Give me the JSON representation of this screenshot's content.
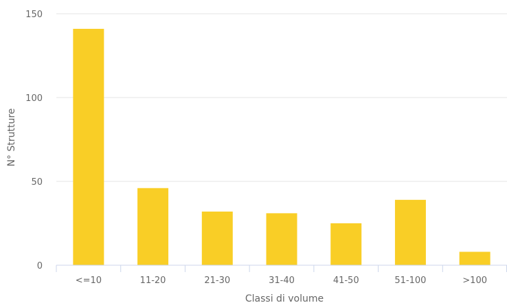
{
  "chart_data": {
    "type": "bar",
    "title": "",
    "xlabel": "Classi di volume",
    "ylabel": "N° Strutture",
    "categories": [
      "<=10",
      "11-20",
      "21-30",
      "31-40",
      "41-50",
      "51-100",
      ">100"
    ],
    "values": [
      141,
      46,
      32,
      31,
      25,
      39,
      8
    ],
    "ylim": [
      0,
      150
    ],
    "yticks": [
      "0",
      "50",
      "100",
      "150"
    ],
    "grid": true,
    "legend": "none",
    "bar_color": "#f9ce26"
  }
}
